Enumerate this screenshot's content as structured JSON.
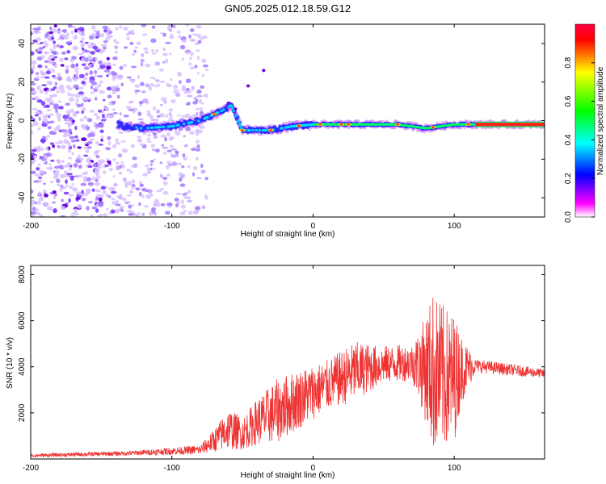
{
  "title": "GN05.2025.012.18.59.G12",
  "chart_data": [
    {
      "type": "heatmap",
      "xlabel": "Height of straight line (km)",
      "ylabel": "Frequency (Hz)",
      "xlim": [
        -200,
        164
      ],
      "ylim": [
        -50,
        50
      ],
      "x_ticks": [
        -200,
        -100,
        0,
        100
      ],
      "y_ticks": [
        -40,
        -20,
        0,
        20,
        40
      ],
      "colorbar": {
        "label": "Normalized spectral amplitude",
        "range": [
          0,
          1
        ],
        "ticks": [
          0.0,
          0.2,
          0.4,
          0.6,
          0.8
        ],
        "tick_labels": [
          "0.0",
          "0.2",
          "0.4",
          "0.6",
          "0.8"
        ],
        "colors": [
          "#ffffff",
          "#ff00ff",
          "#0000ff",
          "#00ffff",
          "#00ff00",
          "#ffff00",
          "#ff0000"
        ]
      },
      "carrier_track": [
        {
          "x": -135,
          "y": -3
        },
        {
          "x": -120,
          "y": -4
        },
        {
          "x": -100,
          "y": -3
        },
        {
          "x": -80,
          "y": 0
        },
        {
          "x": -65,
          "y": 5
        },
        {
          "x": -58,
          "y": 8
        },
        {
          "x": -50,
          "y": -5
        },
        {
          "x": -30,
          "y": -5
        },
        {
          "x": -15,
          "y": -3
        },
        {
          "x": 0,
          "y": -2
        },
        {
          "x": 30,
          "y": -2
        },
        {
          "x": 60,
          "y": -2
        },
        {
          "x": 80,
          "y": -4
        },
        {
          "x": 100,
          "y": -2
        },
        {
          "x": 164,
          "y": -2
        }
      ],
      "noise_region": {
        "x": [
          -200,
          -75
        ],
        "y": [
          -50,
          50
        ]
      }
    },
    {
      "type": "line",
      "xlabel": "Height of straight line (km)",
      "ylabel": "SNR (10 * v/v)",
      "xlim": [
        -200,
        164
      ],
      "ylim": [
        0,
        8400
      ],
      "x_ticks": [
        -200,
        -100,
        0,
        100
      ],
      "y_ticks": [
        2000,
        4000,
        6000,
        8000
      ],
      "color": "#ee3333",
      "envelope": [
        {
          "x": -200,
          "mean": 150,
          "amp": 80
        },
        {
          "x": -130,
          "mean": 250,
          "amp": 100
        },
        {
          "x": -80,
          "mean": 400,
          "amp": 200
        },
        {
          "x": -70,
          "mean": 800,
          "amp": 500
        },
        {
          "x": -60,
          "mean": 1300,
          "amp": 900
        },
        {
          "x": -50,
          "mean": 1100,
          "amp": 700
        },
        {
          "x": -40,
          "mean": 1600,
          "amp": 1000
        },
        {
          "x": -25,
          "mean": 2100,
          "amp": 1400
        },
        {
          "x": -10,
          "mean": 2600,
          "amp": 1300
        },
        {
          "x": 10,
          "mean": 3200,
          "amp": 1100
        },
        {
          "x": 30,
          "mean": 3800,
          "amp": 1300
        },
        {
          "x": 50,
          "mean": 4100,
          "amp": 800
        },
        {
          "x": 70,
          "mean": 4200,
          "amp": 800
        },
        {
          "x": 78,
          "mean": 4000,
          "amp": 2000
        },
        {
          "x": 85,
          "mean": 3800,
          "amp": 3500
        },
        {
          "x": 92,
          "mean": 3500,
          "amp": 3200
        },
        {
          "x": 100,
          "mean": 3500,
          "amp": 2800
        },
        {
          "x": 105,
          "mean": 3900,
          "amp": 1500
        },
        {
          "x": 115,
          "mean": 4050,
          "amp": 300
        },
        {
          "x": 164,
          "mean": 3700,
          "amp": 200
        }
      ]
    }
  ]
}
